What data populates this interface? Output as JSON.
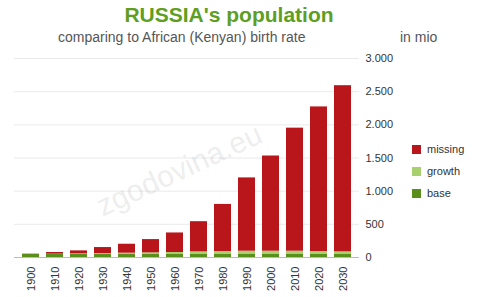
{
  "chart_data": {
    "type": "bar",
    "title": "RUSSIA's population",
    "subtitle": "comparing to African (Kenyan) birth rate",
    "y_label": "in mio",
    "annotations": [
      {
        "text": "zgodovina.eu"
      }
    ],
    "categories": [
      "1900",
      "1910",
      "1920",
      "1930",
      "1940",
      "1950",
      "1960",
      "1970",
      "1980",
      "1990",
      "2000",
      "2010",
      "2020",
      "2030"
    ],
    "series": [
      {
        "name": "base",
        "color": "#5b8f1c",
        "values": [
          45,
          45,
          45,
          45,
          45,
          45,
          45,
          45,
          45,
          45,
          45,
          45,
          45,
          45
        ]
      },
      {
        "name": "growth",
        "color": "#a8d06c",
        "values": [
          0,
          5,
          10,
          15,
          20,
          25,
          30,
          40,
          45,
          50,
          50,
          50,
          45,
          40
        ]
      },
      {
        "name": "missing",
        "color": "#b8161a",
        "values": [
          5,
          25,
          45,
          90,
          135,
          200,
          295,
          455,
          710,
          1105,
          1435,
          1855,
          2180,
          2505
        ]
      }
    ],
    "ylim": [
      0,
      3000
    ],
    "yticks": [
      0,
      500,
      {
        "value": 1000,
        "label": "1.000"
      },
      {
        "value": 1500,
        "label": "1.500"
      },
      {
        "value": 2000,
        "label": "2.000"
      },
      {
        "value": 2500,
        "label": "2.500"
      },
      {
        "value": 3000,
        "label": "3.000"
      }
    ],
    "grid": true,
    "stacked": true,
    "legend": "right"
  }
}
